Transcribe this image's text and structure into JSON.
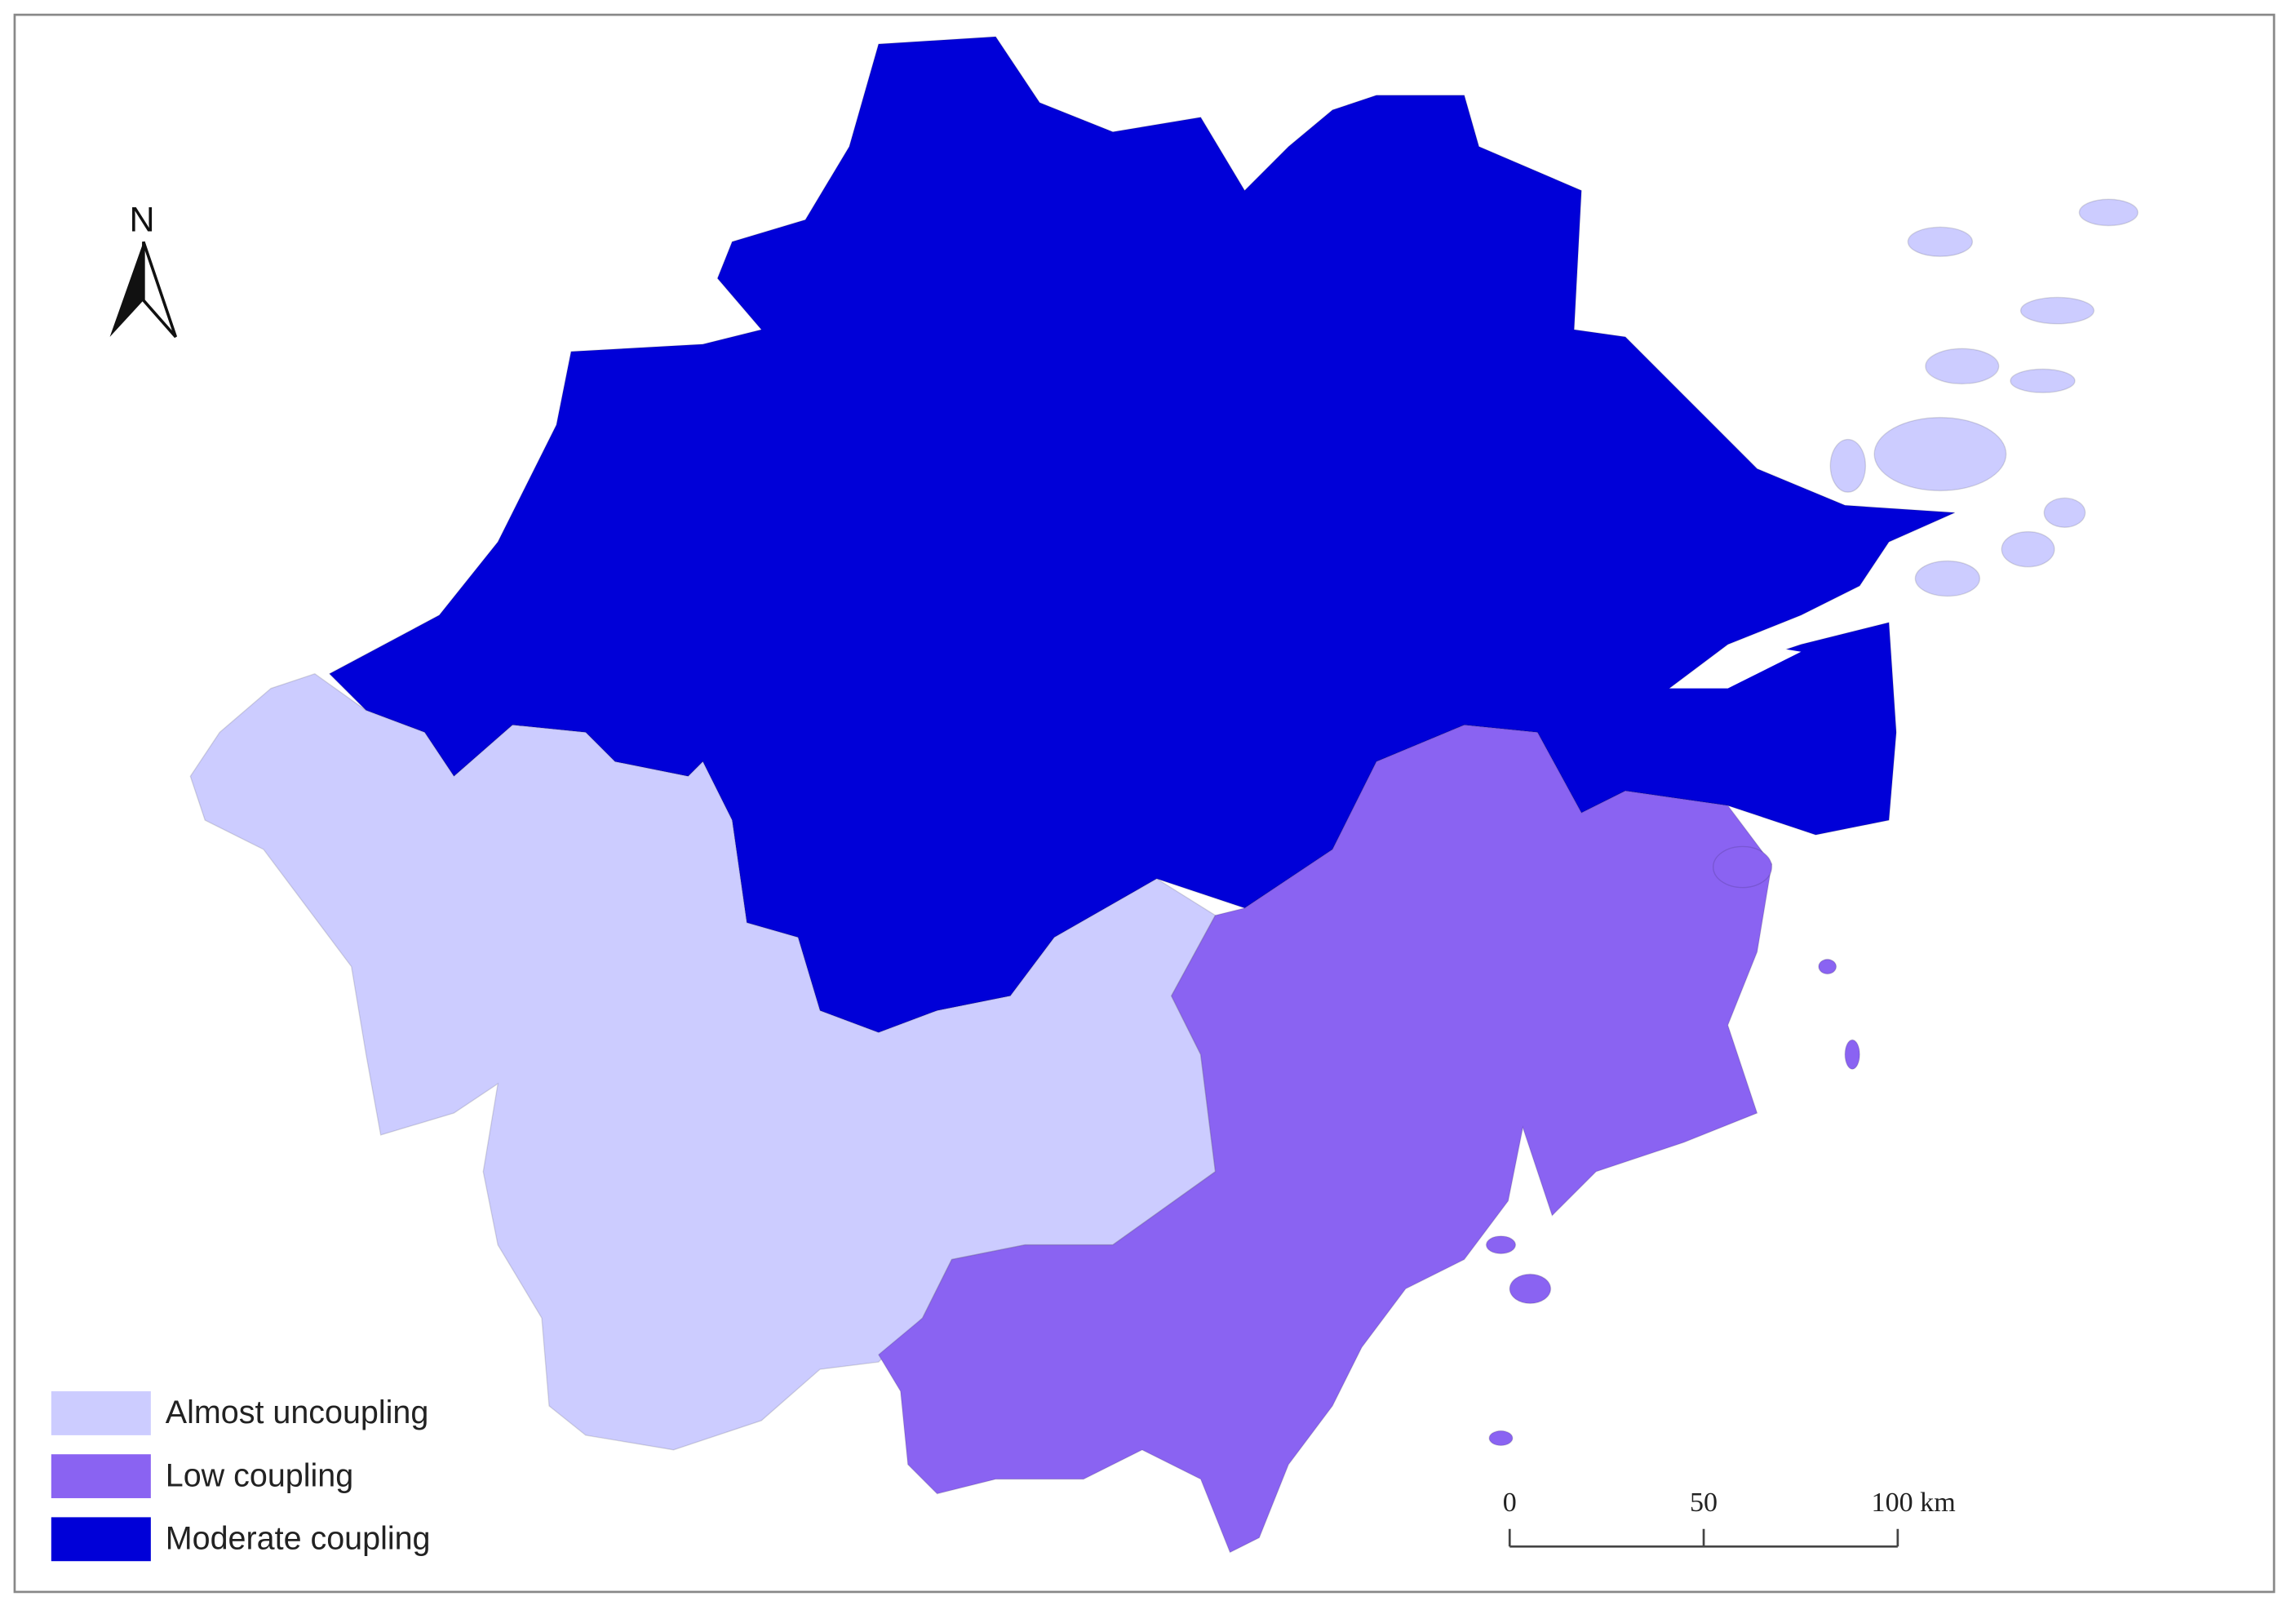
{
  "legend": {
    "items": [
      {
        "label": "Almost uncoupling",
        "color": "#ccccff"
      },
      {
        "label": "Low coupling",
        "color": "#8a63f2"
      },
      {
        "label": "Moderate coupling",
        "color": "#0000d8"
      }
    ]
  },
  "north_arrow": {
    "label": "N"
  },
  "scale_bar": {
    "ticks": [
      {
        "value": 0,
        "label": "0"
      },
      {
        "value": 50,
        "label": "50"
      },
      {
        "value": 100,
        "label": "100 km"
      }
    ]
  }
}
